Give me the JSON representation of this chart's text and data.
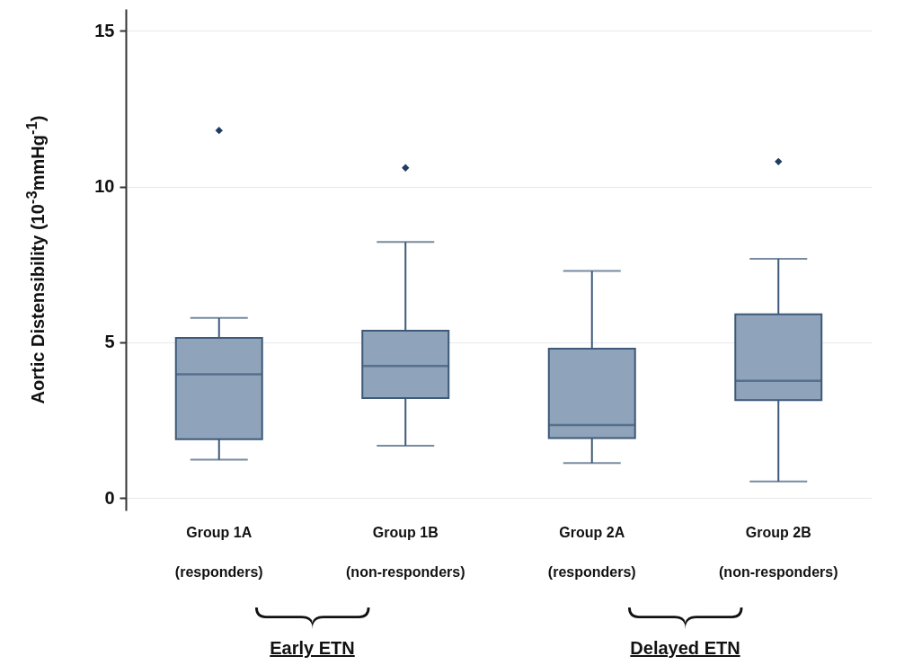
{
  "chart_data": {
    "type": "box",
    "ylabel": "Aortic Distensibility (10$^{-3}$mmHg$^{-1}$)",
    "categories": [
      "Group 1A (responders)",
      "Group 1B (non-responders)",
      "Group 2A (responders)",
      "Group 2B (non-responders)"
    ],
    "series": [
      {
        "color": "#8fa3ba",
        "boxes": [
          {
            "low": 1.23,
            "q1": 1.89,
            "median": 3.97,
            "q3": 5.14,
            "high": 5.78,
            "outliers": [
              11.8
            ]
          },
          {
            "low": 1.68,
            "q1": 3.21,
            "median": 4.24,
            "q3": 5.37,
            "high": 8.22,
            "outliers": [
              10.6
            ]
          },
          {
            "low": 1.12,
            "q1": 1.92,
            "median": 2.34,
            "q3": 4.79,
            "high": 7.29
          },
          {
            "low": 0.53,
            "q1": 3.14,
            "median": 3.76,
            "q3": 5.9,
            "high": 7.68,
            "outliers": [
              10.8
            ]
          }
        ]
      }
    ],
    "ylim": [
      -0.4,
      15.7
    ],
    "yticks": [
      0,
      5,
      10,
      15
    ],
    "grid": "y",
    "marker": "diamond",
    "annotations": [
      "Early ETN",
      "Delayed ETN"
    ]
  }
}
